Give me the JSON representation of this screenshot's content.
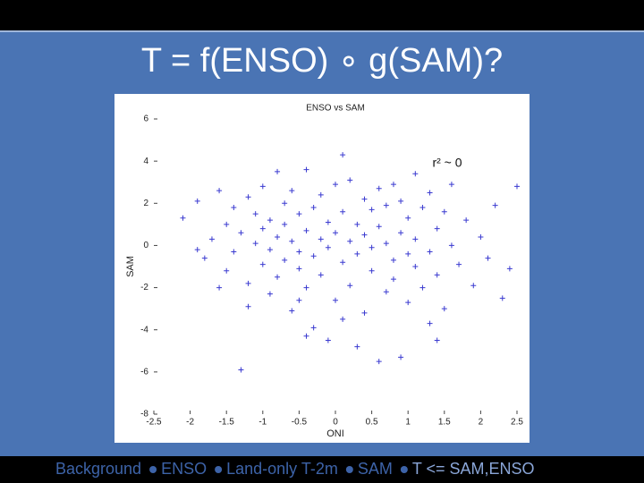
{
  "slide": {
    "title": "T = f(ENSO) ∘ g(SAM)?",
    "footer": [
      "Background",
      "ENSO",
      "Land-only T-2m",
      "SAM",
      "T <= SAM,ENSO"
    ]
  },
  "chart_data": {
    "type": "scatter",
    "title": "ENSO vs SAM",
    "x_label": "ONI",
    "y_label": "SAM",
    "annotation": "r² ~ 0",
    "color": "#3a3ad0",
    "marker": "+",
    "xlim": [
      -2.5,
      2.5
    ],
    "xticks": [
      -2.5,
      -2,
      -1.5,
      -1,
      -0.5,
      0,
      0.5,
      1,
      1.5,
      2,
      2.5
    ],
    "ylim": [
      -8,
      6
    ],
    "yticks": [
      -8,
      -6,
      -4,
      -2,
      0,
      2,
      4,
      6
    ],
    "x": [
      -2.1,
      -1.9,
      -1.8,
      -1.7,
      -1.6,
      -1.5,
      -1.5,
      -1.4,
      -1.4,
      -1.3,
      -1.3,
      -1.2,
      -1.2,
      -1.1,
      -1.1,
      -1.0,
      -1.0,
      -1.0,
      -0.9,
      -0.9,
      -0.9,
      -0.8,
      -0.8,
      -0.8,
      -0.7,
      -0.7,
      -0.7,
      -0.6,
      -0.6,
      -0.6,
      -0.5,
      -0.5,
      -0.5,
      -0.4,
      -0.4,
      -0.4,
      -0.3,
      -0.3,
      -0.3,
      -0.2,
      -0.2,
      -0.2,
      -0.1,
      -0.1,
      -0.1,
      0,
      0,
      0,
      0.1,
      0.1,
      0.1,
      0.2,
      0.2,
      0.2,
      0.3,
      0.3,
      0.3,
      0.4,
      0.4,
      0.4,
      0.5,
      0.5,
      0.5,
      0.6,
      0.6,
      0.6,
      0.7,
      0.7,
      0.7,
      0.8,
      0.8,
      0.8,
      0.9,
      0.9,
      0.9,
      1.0,
      1.0,
      1.0,
      1.1,
      1.1,
      1.1,
      1.2,
      1.2,
      1.3,
      1.3,
      1.4,
      1.4,
      1.5,
      1.5,
      1.6,
      1.6,
      1.7,
      1.8,
      1.9,
      2.0,
      2.1,
      2.2,
      2.4,
      2.5,
      2.3,
      -1.6,
      -1.2,
      -0.5,
      0.1,
      1.3,
      -0.4,
      1.4,
      -1.9
    ],
    "values": [
      1.3,
      2.1,
      -0.6,
      0.3,
      2.6,
      -1.2,
      1.0,
      -0.3,
      1.8,
      -5.9,
      0.6,
      2.3,
      -1.8,
      0.1,
      1.5,
      -0.9,
      2.8,
      0.8,
      -2.3,
      1.2,
      -0.2,
      3.5,
      0.4,
      -1.5,
      2.0,
      -0.7,
      1.0,
      -3.1,
      0.2,
      2.6,
      -1.1,
      1.5,
      -0.3,
      3.6,
      0.7,
      -2.0,
      1.8,
      -0.5,
      -3.9,
      0.3,
      2.4,
      -1.4,
      -4.5,
      1.1,
      -0.1,
      2.9,
      -2.6,
      0.6,
      4.3,
      -0.8,
      1.6,
      -1.9,
      0.2,
      3.1,
      -4.8,
      1.0,
      -0.4,
      2.2,
      -3.2,
      0.5,
      -1.2,
      1.7,
      -0.1,
      -5.5,
      2.7,
      0.9,
      -2.2,
      0.1,
      1.9,
      -0.7,
      2.9,
      -1.6,
      0.6,
      -5.3,
      2.1,
      -0.4,
      1.3,
      -2.7,
      3.4,
      -1.0,
      0.3,
      1.8,
      -2.0,
      -0.3,
      2.5,
      0.8,
      -1.4,
      1.6,
      -3.0,
      0.0,
      2.9,
      -0.9,
      1.2,
      -1.9,
      0.4,
      -0.6,
      1.9,
      -1.1,
      2.8,
      -2.5,
      -2.0,
      -2.9,
      -2.6,
      -3.5,
      -3.7,
      -4.3,
      -4.5,
      -0.2
    ]
  }
}
